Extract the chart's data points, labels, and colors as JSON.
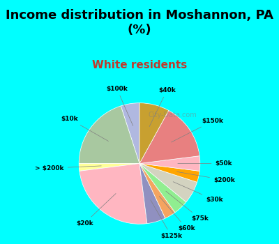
{
  "title": "Income distribution in Moshannon, PA\n(%)",
  "subtitle": "White residents",
  "title_color": "#000000",
  "subtitle_color": "#c0392b",
  "background_top": "#00ffff",
  "background_chart": "#e8f5e9",
  "labels": [
    "$100k",
    "$10k",
    "> $200k",
    "$20k",
    "$125k",
    "$60k",
    "$75k",
    "$30k",
    "$200k",
    "$50k",
    "$150k",
    "$40k"
  ],
  "values": [
    5,
    20,
    2,
    25,
    5,
    3,
    4,
    6,
    3,
    4,
    15,
    8
  ],
  "colors": [
    "#b0b8e0",
    "#a8c8a0",
    "#ffff99",
    "#ffb6c1",
    "#9090c0",
    "#f4a460",
    "#90ee90",
    "#d3d3c0",
    "#ffa500",
    "#ffb6c1",
    "#e88080",
    "#c8a030"
  ],
  "startangle": 90,
  "watermark": "City-Data.com"
}
